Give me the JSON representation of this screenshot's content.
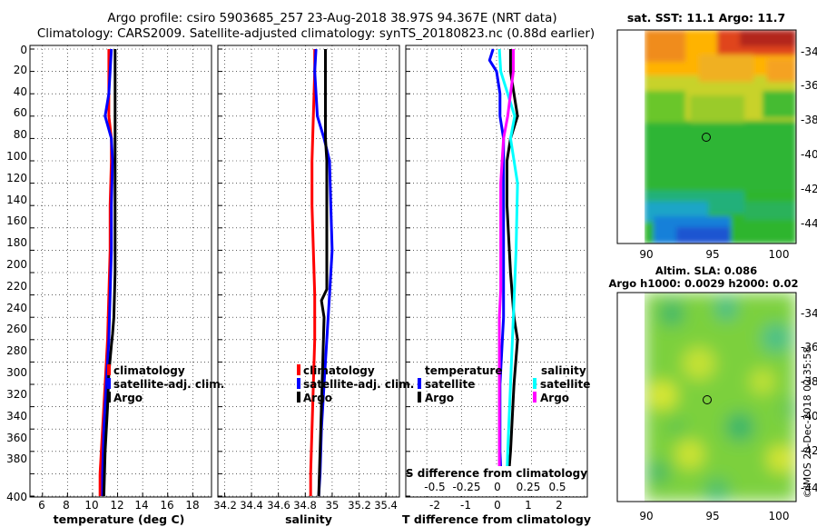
{
  "header": {
    "line1": "Argo profile: csiro 5903685_257 23-Aug-2018 38.97S 94.367E (NRT data)",
    "line2": "Climatology: CARS2009. Satellite-adjusted climatology: synTS_20180823.nc (0.88d earlier)"
  },
  "credit": "©IMOS 20-Dec-2018 02:35:58",
  "colors": {
    "climatology": "#ff0000",
    "satellite_adj": "#0000ff",
    "argo": "#000000",
    "sat_salinity": "#00ffff",
    "argo_salinity": "#ff00ff"
  },
  "chart_data": [
    {
      "type": "line",
      "name": "temperature",
      "xlabel": "temperature (deg C)",
      "xlim": [
        5,
        19.5
      ],
      "ylim": [
        400,
        0
      ],
      "xticks": [
        6,
        8,
        10,
        12,
        14,
        16,
        18
      ],
      "yticks": [
        0,
        20,
        40,
        60,
        80,
        100,
        120,
        140,
        160,
        180,
        200,
        220,
        240,
        260,
        280,
        300,
        320,
        340,
        360,
        380,
        400
      ],
      "legend": [
        "climatology",
        "satellite-adj. clim.",
        "Argo"
      ],
      "legend_colors": [
        "#ff0000",
        "#0000ff",
        "#000000"
      ],
      "series": [
        {
          "name": "climatology",
          "color": "#ff0000",
          "depth": [
            0,
            20,
            40,
            60,
            80,
            100,
            140,
            180,
            220,
            260,
            300,
            340,
            380,
            400
          ],
          "values": [
            11.3,
            11.3,
            11.3,
            11.3,
            11.5,
            11.5,
            11.4,
            11.4,
            11.3,
            11.2,
            11.0,
            10.8,
            10.6,
            10.6
          ]
        },
        {
          "name": "satellite-adj. clim.",
          "color": "#0000ff",
          "depth": [
            0,
            20,
            40,
            60,
            80,
            100,
            140,
            180,
            220,
            260,
            300,
            340,
            380,
            400
          ],
          "values": [
            11.5,
            11.4,
            11.3,
            11.0,
            11.5,
            11.6,
            11.5,
            11.5,
            11.4,
            11.3,
            11.1,
            10.9,
            10.8,
            10.8
          ]
        },
        {
          "name": "Argo",
          "color": "#000000",
          "depth": [
            0,
            20,
            40,
            60,
            80,
            100,
            150,
            200,
            240,
            255,
            265,
            290,
            320,
            360,
            400
          ],
          "values": [
            11.8,
            11.8,
            11.8,
            11.8,
            11.8,
            11.8,
            11.8,
            11.8,
            11.7,
            11.6,
            11.5,
            11.3,
            11.2,
            11.0,
            10.9
          ]
        }
      ]
    },
    {
      "type": "line",
      "name": "salinity",
      "xlabel": "salinity",
      "xlim": [
        34.15,
        35.5
      ],
      "ylim": [
        400,
        0
      ],
      "xticks": [
        34.2,
        34.4,
        34.6,
        34.8,
        35,
        35.2,
        35.4
      ],
      "legend": [
        "climatology",
        "satellite-adj. clim.",
        "Argo"
      ],
      "legend_colors": [
        "#ff0000",
        "#0000ff",
        "#000000"
      ],
      "series": [
        {
          "name": "climatology",
          "color": "#ff0000",
          "depth": [
            0,
            20,
            60,
            100,
            140,
            180,
            220,
            260,
            300,
            340,
            380,
            400
          ],
          "values": [
            34.87,
            34.87,
            34.86,
            34.85,
            34.85,
            34.86,
            34.87,
            34.87,
            34.86,
            34.85,
            34.84,
            34.84
          ]
        },
        {
          "name": "satellite-adj. clim.",
          "color": "#0000ff",
          "depth": [
            0,
            20,
            60,
            80,
            100,
            140,
            180,
            220,
            260,
            300,
            340,
            380,
            400
          ],
          "values": [
            34.88,
            34.87,
            34.89,
            34.94,
            34.98,
            34.99,
            35.0,
            34.98,
            34.96,
            34.94,
            34.92,
            34.91,
            34.9
          ]
        },
        {
          "name": "Argo",
          "color": "#000000",
          "depth": [
            0,
            20,
            60,
            80,
            100,
            140,
            180,
            215,
            225,
            240,
            280,
            320,
            360,
            400
          ],
          "values": [
            34.95,
            34.95,
            34.95,
            34.95,
            34.96,
            34.96,
            34.96,
            34.96,
            34.92,
            34.94,
            34.93,
            34.92,
            34.91,
            34.9
          ]
        }
      ]
    },
    {
      "type": "line",
      "name": "difference",
      "xlabel": "T difference from climatology",
      "xlim": [
        -2.6,
        2.6
      ],
      "ylim": [
        400,
        0
      ],
      "xticks": [
        -2,
        -1,
        0,
        1,
        2
      ],
      "s_axis": {
        "label": "S difference from climatology",
        "ticks": [
          "-0.5",
          "-0.25",
          "0",
          "0.25",
          "0.5"
        ]
      },
      "legend_temperature": {
        "title": "temperature",
        "entries": [
          "satellite",
          "Argo"
        ],
        "colors": [
          "#0000ff",
          "#000000"
        ]
      },
      "legend_salinity": {
        "title": "salinity",
        "entries": [
          "satellite",
          "Argo"
        ],
        "colors": [
          "#00ffff",
          "#ff00ff"
        ]
      },
      "series": [
        {
          "name": "T satellite",
          "color": "#0000ff",
          "depth": [
            0,
            10,
            20,
            40,
            60,
            80,
            120,
            180,
            240,
            300,
            360,
            400
          ],
          "values": [
            -0.1,
            -0.2,
            0.0,
            0.1,
            0.1,
            0.2,
            0.2,
            0.2,
            0.2,
            0.1,
            0.1,
            0.15
          ]
        },
        {
          "name": "T Argo",
          "color": "#000000",
          "depth": [
            0,
            20,
            40,
            60,
            80,
            100,
            140,
            200,
            240,
            260,
            300,
            360,
            400
          ],
          "values": [
            0.4,
            0.4,
            0.5,
            0.6,
            0.4,
            0.3,
            0.3,
            0.4,
            0.5,
            0.6,
            0.5,
            0.4,
            0.3
          ]
        },
        {
          "name": "S satellite",
          "color": "#00ffff",
          "depth": [
            0,
            20,
            40,
            60,
            80,
            120,
            180,
            240,
            300,
            360,
            400
          ],
          "values": [
            0.02,
            0.03,
            0.08,
            0.13,
            0.1,
            0.15,
            0.14,
            0.12,
            0.1,
            0.08,
            0.07
          ]
        },
        {
          "name": "S Argo",
          "color": "#ff00ff",
          "depth": [
            0,
            20,
            40,
            60,
            80,
            120,
            180,
            215,
            240,
            300,
            360,
            400
          ],
          "values": [
            0.12,
            0.12,
            0.1,
            0.08,
            0.05,
            0.03,
            0.03,
            0.03,
            0.02,
            0.02,
            0.02,
            0.02
          ]
        }
      ]
    },
    {
      "type": "heatmap",
      "name": "sst-map",
      "title": "sat. SST: 11.1 Argo: 11.7",
      "xlim": [
        88,
        101
      ],
      "ylim": [
        -45,
        -33
      ],
      "xticks": [
        90,
        95,
        100
      ],
      "yticks": [
        -34,
        -36,
        -38,
        -40,
        -42,
        -44
      ],
      "marker": {
        "lon": 94.367,
        "lat": -38.97
      }
    },
    {
      "type": "heatmap",
      "name": "sla-map",
      "title_line1": "Altim. SLA: 0.086",
      "title_line2": "Argo h1000: 0.0029 h2000: 0.02",
      "xlim": [
        88,
        101
      ],
      "ylim": [
        -45,
        -33
      ],
      "xticks": [
        90,
        95,
        100
      ],
      "yticks": [
        -34,
        -36,
        -38,
        -40,
        -42,
        -44
      ],
      "marker": {
        "lon": 94.367,
        "lat": -38.97
      }
    }
  ]
}
